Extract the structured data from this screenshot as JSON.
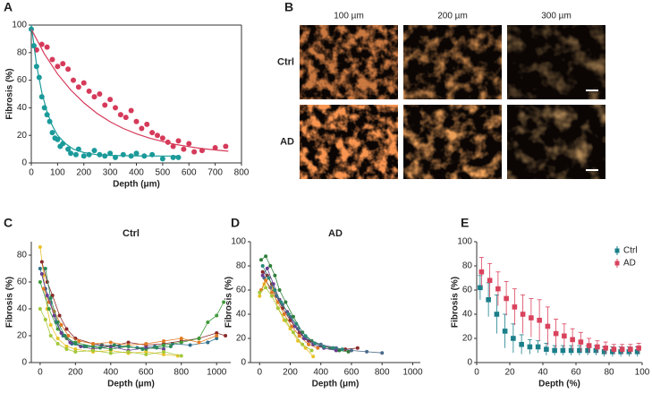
{
  "chart_data": [
    {
      "type": "scatter",
      "label": "A",
      "xlabel": "Depth (μm)",
      "ylabel": "Fibrosis (%)",
      "xlim": [
        0,
        800
      ],
      "ylim": [
        0,
        100
      ],
      "xticks": [
        0,
        100,
        200,
        300,
        400,
        500,
        600,
        700,
        800
      ],
      "yticks": [
        0,
        20,
        40,
        60,
        80,
        100
      ],
      "frame": true,
      "series": [
        {
          "mode": "markers",
          "color": "#1b9a9a",
          "x": [
            0,
            10,
            20,
            30,
            40,
            50,
            60,
            70,
            80,
            90,
            100,
            110,
            120,
            140,
            150,
            170,
            180,
            200,
            220,
            240,
            260,
            280,
            300,
            320,
            350,
            380,
            400,
            430,
            460,
            500,
            540,
            560
          ],
          "values": [
            97,
            85,
            70,
            62,
            48,
            40,
            35,
            30,
            22,
            18,
            17,
            12,
            14,
            10,
            7,
            6,
            10,
            5,
            6,
            9,
            6,
            5,
            7,
            4,
            6,
            5,
            7,
            5,
            6,
            3,
            4,
            4
          ]
        },
        {
          "mode": "markers",
          "color": "#d63a5a",
          "x": [
            20,
            40,
            60,
            80,
            100,
            120,
            140,
            160,
            180,
            200,
            220,
            240,
            260,
            280,
            300,
            320,
            340,
            360,
            380,
            400,
            420,
            440,
            460,
            480,
            500,
            520,
            540,
            560,
            580,
            600,
            620,
            650,
            700,
            740
          ],
          "values": [
            82,
            86,
            84,
            75,
            70,
            72,
            68,
            60,
            55,
            58,
            52,
            48,
            50,
            42,
            46,
            40,
            35,
            33,
            38,
            30,
            25,
            28,
            22,
            20,
            18,
            15,
            12,
            16,
            10,
            14,
            8,
            9,
            11,
            12
          ]
        },
        {
          "mode": "line",
          "color": "#1b9a9a",
          "x": [
            0,
            20,
            40,
            60,
            80,
            100,
            130,
            160,
            200,
            250,
            300,
            400,
            500,
            560
          ],
          "values": [
            100,
            71,
            51,
            37,
            27,
            20,
            14,
            10,
            7.5,
            6,
            5.4,
            5.1,
            5,
            5
          ]
        },
        {
          "mode": "line",
          "color": "#d63a5a",
          "x": [
            0,
            50,
            100,
            150,
            200,
            250,
            300,
            350,
            400,
            450,
            500,
            550,
            600,
            650,
            700,
            750
          ],
          "values": [
            97,
            79,
            64.5,
            52.9,
            43.6,
            36,
            29.9,
            25,
            21.2,
            18,
            15.5,
            13.4,
            11.8,
            10.4,
            9.4,
            8.5
          ]
        }
      ]
    },
    {
      "type": "image-grid",
      "label": "B",
      "columns": [
        "100 µm",
        "200 µm",
        "300 µm"
      ],
      "rows": [
        "Ctrl",
        "AD"
      ]
    },
    {
      "type": "scatter",
      "label": "C",
      "title": "Ctrl",
      "xlabel": "Depth (μm)",
      "ylabel": "Fibrosis (%)",
      "xlim": [
        -50,
        1080
      ],
      "ylim": [
        0,
        90
      ],
      "xticks": [
        0,
        200,
        400,
        600,
        800,
        1000
      ],
      "yticks": [
        0,
        20,
        40,
        60,
        80
      ],
      "frame": false,
      "series": [
        {
          "mode": "lines+markers",
          "color": "#e8c22a",
          "x": [
            0,
            20,
            40,
            60,
            100,
            150,
            200,
            300,
            400,
            500,
            600,
            700,
            780
          ],
          "values": [
            86,
            65,
            40,
            28,
            18,
            12,
            10,
            8,
            9,
            7,
            8,
            6,
            5
          ]
        },
        {
          "mode": "lines+markers",
          "color": "#2d6e8c",
          "x": [
            0,
            30,
            60,
            90,
            130,
            180,
            250,
            350,
            450,
            550,
            650,
            750,
            850,
            950,
            1000
          ],
          "values": [
            70,
            55,
            45,
            30,
            20,
            14,
            12,
            13,
            12,
            11,
            12,
            14,
            13,
            15,
            18
          ]
        },
        {
          "mode": "lines+markers",
          "color": "#8b2a2a",
          "x": [
            10,
            40,
            70,
            110,
            150,
            200,
            300,
            400,
            500,
            600,
            700,
            800,
            900,
            1000,
            1050
          ],
          "values": [
            75,
            60,
            50,
            35,
            25,
            18,
            14,
            12,
            15,
            13,
            14,
            16,
            18,
            22,
            20
          ]
        },
        {
          "mode": "lines+markers",
          "color": "#3f9a3a",
          "x": [
            0,
            50,
            100,
            150,
            200,
            300,
            400,
            500,
            600,
            700,
            800,
            900,
            950,
            1000,
            1040
          ],
          "values": [
            60,
            40,
            25,
            18,
            15,
            12,
            10,
            12,
            10,
            13,
            15,
            18,
            30,
            35,
            45
          ]
        },
        {
          "mode": "lines+markers",
          "color": "#e07b24",
          "x": [
            20,
            50,
            80,
            120,
            160,
            220,
            300,
            400,
            500,
            600,
            700,
            800,
            900,
            1000
          ],
          "values": [
            55,
            45,
            38,
            28,
            20,
            16,
            14,
            15,
            13,
            14,
            16,
            18,
            15,
            20
          ]
        },
        {
          "mode": "lines+markers",
          "color": "#6a3d8f",
          "x": [
            10,
            40,
            80,
            120,
            170,
            230,
            300,
            400,
            500,
            600,
            700
          ],
          "values": [
            66,
            50,
            35,
            22,
            15,
            12,
            10,
            12,
            9,
            11,
            10
          ]
        },
        {
          "mode": "lines+markers",
          "color": "#a3c83a",
          "x": [
            0,
            30,
            60,
            100,
            150,
            200,
            300,
            400,
            500,
            600,
            700,
            800
          ],
          "values": [
            40,
            32,
            20,
            14,
            10,
            8,
            9,
            7,
            8,
            6,
            8,
            5
          ]
        },
        {
          "mode": "lines+markers",
          "color": "#2a8a5a",
          "x": [
            30,
            60,
            100,
            140,
            200,
            260,
            340,
            420,
            500,
            580,
            660,
            740
          ],
          "values": [
            70,
            48,
            30,
            20,
            14,
            12,
            11,
            13,
            12,
            10,
            11,
            12
          ]
        }
      ]
    },
    {
      "type": "scatter",
      "label": "D",
      "title": "AD",
      "xlabel": "Depth (μm)",
      "ylabel": "Fibrosis (%)",
      "xlim": [
        -60,
        1050
      ],
      "ylim": [
        0,
        100
      ],
      "xticks": [
        0,
        200,
        400,
        600,
        800,
        1000
      ],
      "yticks": [
        0,
        20,
        40,
        60,
        80,
        100
      ],
      "frame": false,
      "series": [
        {
          "mode": "lines+markers",
          "color": "#2f7d3a",
          "x": [
            10,
            40,
            70,
            100,
            130,
            170,
            220,
            280,
            340,
            400,
            460,
            520,
            580
          ],
          "values": [
            85,
            88,
            80,
            72,
            60,
            50,
            38,
            25,
            18,
            14,
            12,
            10,
            9
          ]
        },
        {
          "mode": "lines+markers",
          "color": "#e8c22a",
          "x": [
            0,
            30,
            60,
            90,
            120,
            160,
            200,
            250,
            300,
            350
          ],
          "values": [
            55,
            65,
            70,
            60,
            45,
            35,
            28,
            18,
            12,
            5
          ]
        },
        {
          "mode": "lines+markers",
          "color": "#8b2a2a",
          "x": [
            20,
            50,
            80,
            110,
            150,
            200,
            260,
            320,
            400,
            480,
            560,
            640
          ],
          "values": [
            75,
            72,
            65,
            55,
            45,
            35,
            25,
            18,
            14,
            12,
            11,
            12
          ]
        },
        {
          "mode": "lines+markers",
          "color": "#4a6a8a",
          "x": [
            30,
            70,
            110,
            150,
            200,
            250,
            300,
            400,
            500,
            600,
            700,
            800
          ],
          "values": [
            70,
            62,
            55,
            48,
            38,
            28,
            20,
            15,
            12,
            10,
            9,
            8
          ]
        },
        {
          "mode": "lines+markers",
          "color": "#e07b24",
          "x": [
            10,
            40,
            80,
            120,
            160,
            210,
            260,
            320,
            380
          ],
          "values": [
            60,
            68,
            58,
            50,
            40,
            30,
            22,
            15,
            12
          ]
        },
        {
          "mode": "lines+markers",
          "color": "#6a3d8f",
          "x": [
            20,
            50,
            90,
            130,
            180,
            230,
            290,
            350,
            420,
            500
          ],
          "values": [
            72,
            78,
            65,
            52,
            42,
            30,
            20,
            15,
            12,
            10
          ]
        },
        {
          "mode": "lines+markers",
          "color": "#a3c83a",
          "x": [
            0,
            40,
            80,
            120,
            170,
            220,
            280,
            340
          ],
          "values": [
            58,
            62,
            55,
            45,
            35,
            25,
            15,
            10
          ]
        },
        {
          "mode": "lines+markers",
          "color": "#2a8a7a",
          "x": [
            20,
            60,
            100,
            140,
            190,
            240,
            300,
            360,
            420,
            480,
            540
          ],
          "values": [
            80,
            70,
            60,
            50,
            40,
            32,
            22,
            16,
            13,
            12,
            11
          ]
        }
      ]
    },
    {
      "type": "errorbar",
      "label": "E",
      "xlabel": "Depth (%)",
      "ylabel": "Fibrosis (%)",
      "xlim": [
        0,
        100
      ],
      "ylim": [
        0,
        100
      ],
      "xticks": [
        0,
        20,
        40,
        60,
        80,
        100
      ],
      "yticks": [
        0,
        20,
        40,
        60,
        80,
        100
      ],
      "frame": false,
      "legend": "top-right",
      "x": [
        2.5,
        7.5,
        12.5,
        17.5,
        22.5,
        27.5,
        32.5,
        37.5,
        42.5,
        47.5,
        52.5,
        57.5,
        62.5,
        67.5,
        72.5,
        77.5,
        82.5,
        87.5,
        92.5,
        97.5
      ],
      "series": [
        {
          "name": "Ctrl",
          "color": "#1b7f8a",
          "values": [
            62,
            52,
            40,
            26,
            20,
            15,
            13,
            13,
            11,
            10,
            10,
            10,
            10,
            10,
            10,
            9,
            9,
            9,
            9,
            9
          ],
          "errors": [
            10,
            14,
            16,
            14,
            12,
            8,
            6,
            5,
            5,
            4,
            4,
            4,
            4,
            4,
            4,
            4,
            4,
            4,
            4,
            4
          ]
        },
        {
          "name": "AD",
          "color": "#d9435d",
          "values": [
            75,
            68,
            61,
            53,
            46,
            40,
            37,
            35,
            30,
            24,
            22,
            19,
            17,
            14,
            13,
            12,
            11,
            11,
            11,
            12
          ],
          "errors": [
            12,
            14,
            14,
            14,
            15,
            16,
            16,
            17,
            16,
            12,
            10,
            9,
            8,
            6,
            5,
            5,
            4,
            4,
            4,
            4
          ]
        }
      ]
    }
  ]
}
